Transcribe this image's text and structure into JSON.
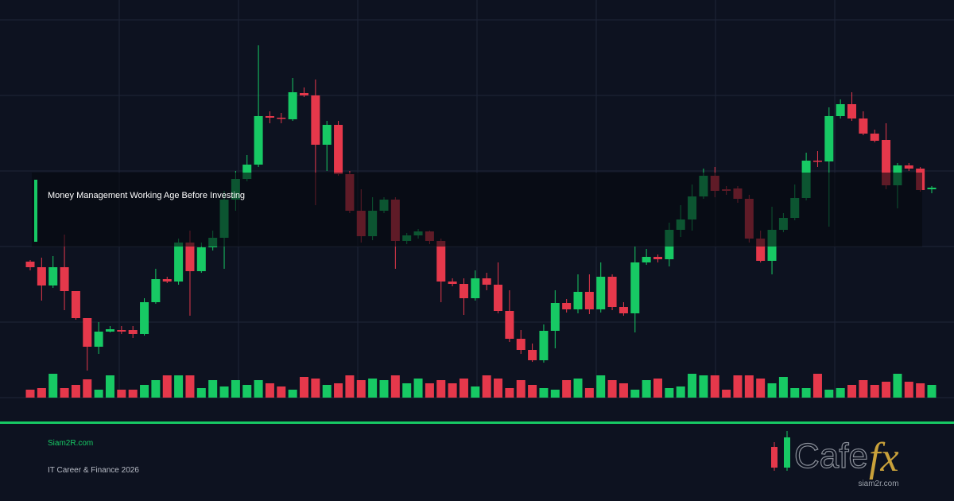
{
  "chart_data": {
    "type": "candlestick",
    "title": "Money Management Working Age Before Investing",
    "ylim": [
      0,
      500
    ],
    "volume_lim": [
      0,
      100
    ],
    "up_color": "#17c964",
    "down_color": "#e5384b",
    "open": [
      171,
      164,
      141,
      164,
      134,
      100,
      64,
      83,
      85,
      85,
      80,
      120,
      149,
      146,
      195,
      159,
      189,
      201,
      249,
      275,
      293,
      354,
      352,
      350,
      383,
      380,
      318,
      343,
      281,
      235,
      203,
      235,
      249,
      197,
      204,
      209,
      197,
      146,
      143,
      125,
      150,
      142,
      109,
      74,
      60,
      47,
      84,
      119,
      111,
      133,
      111,
      152,
      114,
      106,
      170,
      177,
      174,
      211,
      224,
      253,
      279,
      262,
      263,
      250,
      200,
      172,
      211,
      226,
      251,
      298,
      297,
      354,
      369,
      351,
      332,
      324,
      267,
      292,
      288,
      262
    ],
    "high": [
      173,
      176,
      178,
      205,
      134,
      100,
      95,
      90,
      90,
      90,
      125,
      162,
      152,
      200,
      210,
      195,
      210,
      260,
      285,
      305,
      443,
      360,
      358,
      402,
      390,
      400,
      348,
      348,
      285,
      262,
      252,
      252,
      252,
      207,
      212,
      210,
      200,
      150,
      150,
      160,
      157,
      170,
      135,
      85,
      68,
      92,
      135,
      124,
      155,
      155,
      170,
      155,
      120,
      190,
      187,
      180,
      220,
      242,
      268,
      288,
      290,
      266,
      266,
      255,
      210,
      240,
      232,
      268,
      308,
      310,
      365,
      375,
      384,
      360,
      337,
      345,
      295,
      295,
      290,
      266
    ],
    "low": [
      160,
      122,
      138,
      110,
      98,
      34,
      55,
      82,
      80,
      75,
      78,
      118,
      144,
      142,
      103,
      157,
      185,
      162,
      235,
      272,
      290,
      345,
      345,
      348,
      378,
      242,
      285,
      279,
      232,
      195,
      198,
      232,
      162,
      193,
      200,
      193,
      120,
      140,
      104,
      122,
      135,
      106,
      70,
      55,
      45,
      44,
      62,
      107,
      106,
      105,
      107,
      110,
      103,
      82,
      167,
      170,
      165,
      202,
      210,
      250,
      252,
      255,
      245,
      195,
      170,
      155,
      208,
      223,
      248,
      290,
      215,
      351,
      348,
      330,
      321,
      262,
      238,
      285,
      259,
      257
    ],
    "close": [
      164,
      141,
      164,
      134,
      100,
      64,
      83,
      86,
      83,
      80,
      120,
      149,
      146,
      195,
      159,
      189,
      201,
      249,
      275,
      293,
      354,
      352,
      351,
      384,
      380,
      318,
      343,
      281,
      235,
      203,
      235,
      249,
      197,
      204,
      209,
      197,
      146,
      143,
      125,
      150,
      142,
      109,
      74,
      60,
      47,
      84,
      119,
      111,
      133,
      111,
      152,
      114,
      106,
      170,
      177,
      174,
      211,
      224,
      253,
      279,
      260,
      260,
      250,
      200,
      172,
      211,
      226,
      251,
      298,
      297,
      354,
      369,
      351,
      332,
      323,
      267,
      292,
      288,
      261,
      264
    ],
    "volume": [
      10,
      12,
      30,
      12,
      16,
      23,
      10,
      28,
      10,
      10,
      16,
      22,
      28,
      28,
      28,
      12,
      22,
      14,
      22,
      16,
      22,
      18,
      14,
      10,
      26,
      24,
      16,
      18,
      28,
      22,
      24,
      22,
      28,
      18,
      24,
      18,
      22,
      18,
      24,
      14,
      28,
      24,
      12,
      22,
      16,
      12,
      10,
      22,
      24,
      12,
      28,
      22,
      18,
      10,
      22,
      24,
      12,
      14,
      30,
      28,
      28,
      10,
      28,
      28,
      24,
      18,
      26,
      12,
      12,
      30,
      10,
      12,
      16,
      22,
      16,
      20,
      30,
      20,
      18,
      16
    ]
  },
  "footer": {
    "site": "Siam2R.com",
    "tagline": "IT Career & Finance 2026"
  },
  "logo": {
    "word": "Cafe",
    "accent": "fx",
    "url": "siam2r.com"
  }
}
